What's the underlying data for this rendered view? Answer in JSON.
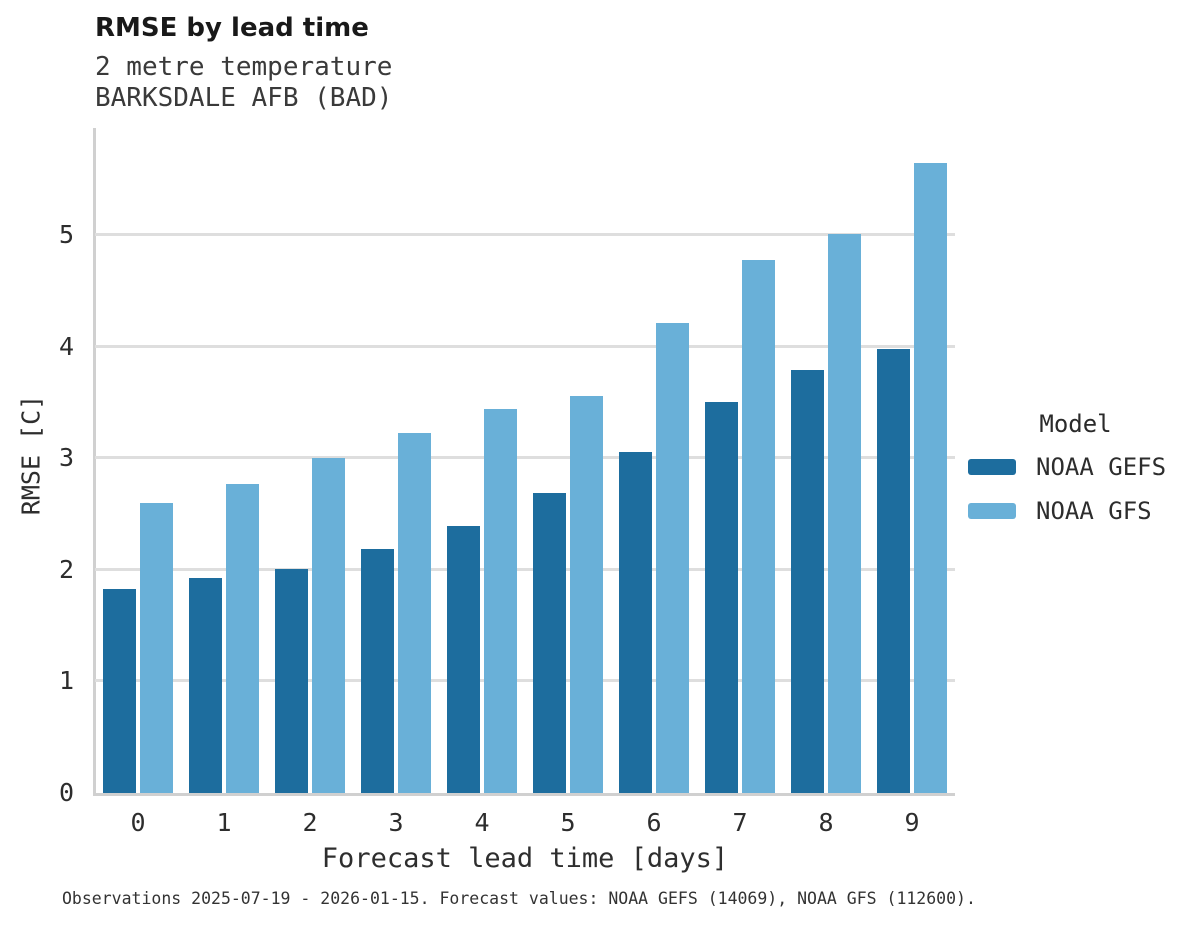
{
  "header": {
    "title": "RMSE by lead time",
    "subtitle_line1": "2 metre temperature",
    "subtitle_line2": "BARKSDALE AFB (BAD)"
  },
  "legend": {
    "title": "Model",
    "entries": [
      {
        "label": "NOAA GEFS",
        "color": "#1d6d9e"
      },
      {
        "label": "NOAA GFS",
        "color": "#69b0d8"
      }
    ]
  },
  "footer": {
    "text": "Observations 2025-07-19 - 2026-01-15. Forecast values: NOAA GEFS (14069), NOAA GFS (112600)."
  },
  "chart_data": {
    "type": "bar",
    "title": "RMSE by lead time",
    "subtitle": [
      "2 metre temperature",
      "BARKSDALE AFB (BAD)"
    ],
    "xlabel": "Forecast lead time [days]",
    "ylabel": "RMSE [C]",
    "categories": [
      0,
      1,
      2,
      3,
      4,
      5,
      6,
      7,
      8,
      9
    ],
    "series": [
      {
        "name": "NOAA GEFS",
        "color": "#1d6d9e",
        "values": [
          1.83,
          1.93,
          2.01,
          2.19,
          2.39,
          2.69,
          3.06,
          3.5,
          3.79,
          3.98
        ]
      },
      {
        "name": "NOAA GFS",
        "color": "#69b0d8",
        "values": [
          2.6,
          2.77,
          3.0,
          3.23,
          3.44,
          3.56,
          4.21,
          4.78,
          5.01,
          5.65
        ]
      }
    ],
    "ylim": [
      0,
      5.96
    ],
    "yticks": [
      0,
      1,
      2,
      3,
      4,
      5
    ],
    "grid": true,
    "grid_color": "#dedede",
    "spine_color": "#d0d0d0",
    "legend_position": "center-right"
  }
}
